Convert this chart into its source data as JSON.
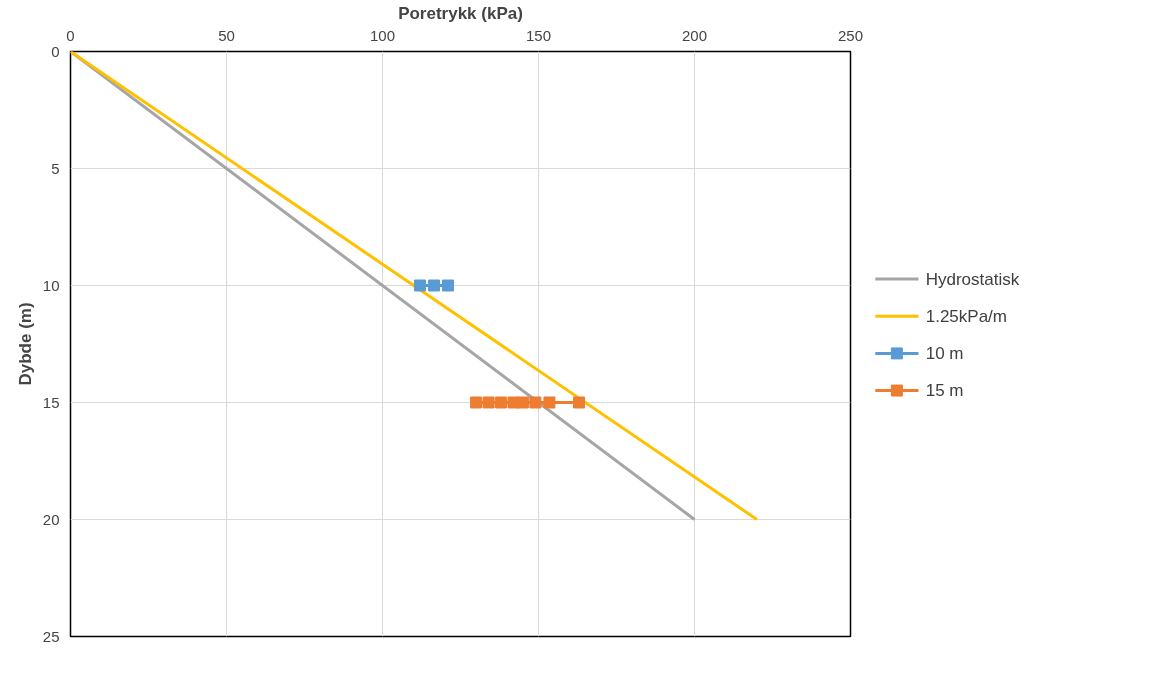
{
  "chart_data": {
    "type": "line",
    "xlabel": "Poretrykk (kPa)",
    "ylabel": "Dybde (m)",
    "xlim": [
      0,
      250
    ],
    "xticks": [
      0,
      50,
      100,
      150,
      200,
      250
    ],
    "ylim": [
      25,
      0
    ],
    "yticks": [
      0,
      5,
      10,
      15,
      20,
      25
    ],
    "grid": true,
    "legend": "right",
    "series": [
      {
        "name": "Hydrostatisk",
        "color": "#a5a5a5",
        "x": [
          0,
          200
        ],
        "values": [
          0,
          20
        ],
        "marker": "none"
      },
      {
        "name": "1.25kPa/m",
        "color": "#ffc000",
        "x": [
          0,
          220
        ],
        "values": [
          0,
          20
        ],
        "marker": "none"
      },
      {
        "name": "10 m",
        "color": "#5b9bd5",
        "x": [
          112,
          116.5,
          121
        ],
        "values": [
          10,
          10,
          10
        ],
        "marker": "square"
      },
      {
        "name": "15 m",
        "color": "#ed7d31",
        "x": [
          130,
          134,
          138,
          142,
          145,
          149,
          153.5,
          163
        ],
        "values": [
          15,
          15,
          15,
          15,
          15,
          15,
          15,
          15
        ],
        "marker": "square"
      }
    ]
  }
}
